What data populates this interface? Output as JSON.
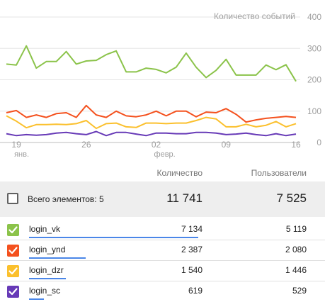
{
  "chart_data": {
    "type": "line",
    "ylabel": "Количество событий",
    "yticks": [
      "400",
      "300",
      "200",
      "100",
      "0"
    ],
    "ylim": [
      0,
      400
    ],
    "xtick_labels": [
      {
        "day": "19",
        "month": "янв.",
        "index": 1
      },
      {
        "day": "26",
        "month": "",
        "index": 8
      },
      {
        "day": "02",
        "month": "февр.",
        "index": 15
      },
      {
        "day": "09",
        "month": "",
        "index": 22
      },
      {
        "day": "16",
        "month": "",
        "index": 29
      }
    ],
    "points": 30,
    "grid": true,
    "series": [
      {
        "name": "login_vk",
        "color": "#8bc34a",
        "values": [
          250,
          247,
          308,
          237,
          258,
          258,
          290,
          250,
          260,
          262,
          280,
          292,
          225,
          225,
          237,
          233,
          222,
          240,
          285,
          240,
          207,
          230,
          265,
          215,
          215,
          215,
          247,
          232,
          248,
          195
        ]
      },
      {
        "name": "login_ynd",
        "color": "#f4511e",
        "values": [
          95,
          102,
          80,
          88,
          80,
          92,
          95,
          80,
          118,
          88,
          80,
          100,
          85,
          82,
          88,
          100,
          85,
          100,
          100,
          82,
          97,
          95,
          108,
          90,
          65,
          72,
          77,
          80,
          83,
          80
        ]
      },
      {
        "name": "login_dzr",
        "color": "#fbc02d",
        "values": [
          85,
          68,
          47,
          57,
          57,
          58,
          57,
          60,
          70,
          45,
          60,
          62,
          50,
          48,
          62,
          62,
          60,
          62,
          62,
          70,
          80,
          75,
          50,
          50,
          58,
          50,
          55,
          67,
          50,
          60
        ]
      },
      {
        "name": "login_sc",
        "color": "#673ab7",
        "values": [
          28,
          22,
          25,
          23,
          25,
          30,
          32,
          28,
          25,
          35,
          22,
          32,
          32,
          27,
          22,
          30,
          30,
          28,
          28,
          32,
          32,
          30,
          25,
          27,
          30,
          25,
          22,
          28,
          22,
          27
        ]
      }
    ]
  },
  "table": {
    "header_count": "Количество",
    "header_users": "Пользователи",
    "total_label": "Всего элементов: 5",
    "total_count": "11 741",
    "total_users": "7 525",
    "rows": [
      {
        "name": "login_vk",
        "count": "7 134",
        "users": "5 119",
        "color": "#8bc34a",
        "share": 1.0
      },
      {
        "name": "login_ynd",
        "count": "2 387",
        "users": "2 080",
        "color": "#f4511e",
        "share": 0.335
      },
      {
        "name": "login_dzr",
        "count": "1 540",
        "users": "1 446",
        "color": "#fbc02d",
        "share": 0.216
      },
      {
        "name": "login_sc",
        "count": "619",
        "users": "529",
        "color": "#673ab7",
        "share": 0.087
      }
    ]
  }
}
